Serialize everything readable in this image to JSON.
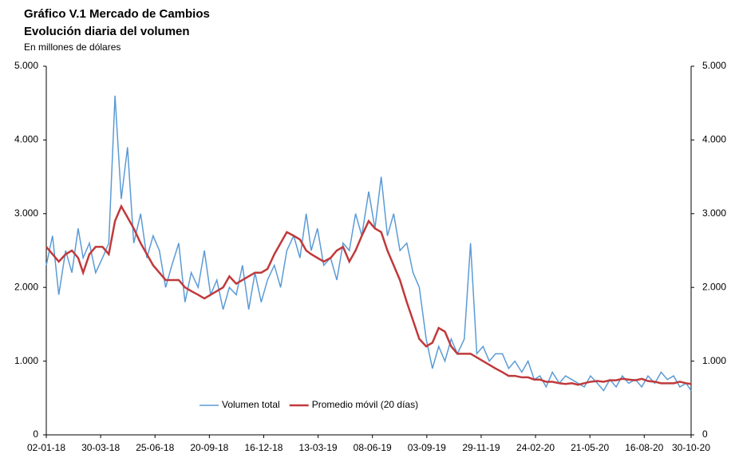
{
  "chart_data": {
    "type": "line",
    "title": "Gráfico V.1 Mercado de Cambios",
    "subtitle": "Evolución diaria del volumen",
    "y_label": "En millones de dólares",
    "x": [
      "02-01-18",
      "12-01-18",
      "22-01-18",
      "02-02-18",
      "12-02-18",
      "22-02-18",
      "02-03-18",
      "12-03-18",
      "22-03-18",
      "02-04-18",
      "12-04-18",
      "22-04-18",
      "02-05-18",
      "12-05-18",
      "22-05-18",
      "02-06-18",
      "12-06-18",
      "22-06-18",
      "02-07-18",
      "12-07-18",
      "22-07-18",
      "02-08-18",
      "12-08-18",
      "22-08-18",
      "02-09-18",
      "12-09-18",
      "22-09-18",
      "02-10-18",
      "12-10-18",
      "22-10-18",
      "02-11-18",
      "12-11-18",
      "22-11-18",
      "02-12-18",
      "12-12-18",
      "22-12-18",
      "02-01-19",
      "12-01-19",
      "22-01-19",
      "02-02-19",
      "12-02-19",
      "22-02-19",
      "02-03-19",
      "12-03-19",
      "22-03-19",
      "02-04-19",
      "12-04-19",
      "22-04-19",
      "02-05-19",
      "12-05-19",
      "22-05-19",
      "02-06-19",
      "12-06-19",
      "22-06-19",
      "02-07-19",
      "12-07-19",
      "22-07-19",
      "02-08-19",
      "12-08-19",
      "22-08-19",
      "02-09-19",
      "12-09-19",
      "22-09-19",
      "02-10-19",
      "12-10-19",
      "22-10-19",
      "02-11-19",
      "12-11-19",
      "22-11-19",
      "02-12-19",
      "12-12-19",
      "22-12-19",
      "02-01-20",
      "12-01-20",
      "22-01-20",
      "02-02-20",
      "12-02-20",
      "22-02-20",
      "02-03-20",
      "12-03-20",
      "22-03-20",
      "02-04-20",
      "12-04-20",
      "22-04-20",
      "02-05-20",
      "12-05-20",
      "22-05-20",
      "02-06-20",
      "12-06-20",
      "22-06-20",
      "02-07-20",
      "12-07-20",
      "22-07-20",
      "02-08-20",
      "12-08-20",
      "22-08-20",
      "02-09-20",
      "12-09-20",
      "22-09-20",
      "02-10-20",
      "12-10-20",
      "22-10-20",
      "30-10-20"
    ],
    "series": [
      {
        "name": "Volumen total",
        "color": "#5b9bd5",
        "values": [
          2300,
          2700,
          1900,
          2500,
          2200,
          2800,
          2400,
          2600,
          2200,
          2400,
          2600,
          4600,
          3200,
          3900,
          2600,
          3000,
          2400,
          2700,
          2500,
          2000,
          2300,
          2600,
          1800,
          2200,
          2000,
          2500,
          1900,
          2100,
          1700,
          2000,
          1900,
          2300,
          1700,
          2200,
          1800,
          2100,
          2300,
          2000,
          2500,
          2700,
          2400,
          3000,
          2500,
          2800,
          2300,
          2400,
          2100,
          2600,
          2500,
          3000,
          2700,
          3300,
          2800,
          3500,
          2700,
          3000,
          2500,
          2600,
          2200,
          2000,
          1300,
          900,
          1200,
          1000,
          1300,
          1100,
          1300,
          2600,
          1100,
          1200,
          1000,
          1100,
          1100,
          900,
          1000,
          850,
          1000,
          750,
          800,
          650,
          850,
          700,
          800,
          750,
          700,
          650,
          800,
          700,
          600,
          750,
          650,
          800,
          700,
          750,
          650,
          800,
          700,
          850,
          750,
          800,
          650,
          700,
          600
        ]
      },
      {
        "name": "Promedio móvil (20 días)",
        "color": "#c0393b",
        "values": [
          2550,
          2450,
          2350,
          2450,
          2500,
          2400,
          2200,
          2450,
          2550,
          2550,
          2450,
          2900,
          3100,
          2950,
          2800,
          2600,
          2450,
          2300,
          2200,
          2100,
          2100,
          2100,
          2000,
          1950,
          1900,
          1850,
          1900,
          1950,
          2000,
          2150,
          2050,
          2100,
          2150,
          2200,
          2200,
          2250,
          2450,
          2600,
          2750,
          2700,
          2650,
          2500,
          2450,
          2400,
          2350,
          2400,
          2500,
          2550,
          2350,
          2500,
          2700,
          2900,
          2800,
          2750,
          2500,
          2300,
          2100,
          1800,
          1550,
          1300,
          1200,
          1250,
          1450,
          1400,
          1200,
          1100,
          1100,
          1100,
          1050,
          1000,
          950,
          900,
          850,
          800,
          800,
          780,
          780,
          750,
          750,
          720,
          720,
          700,
          690,
          700,
          680,
          700,
          720,
          730,
          720,
          740,
          740,
          760,
          750,
          740,
          760,
          730,
          720,
          700,
          700,
          700,
          720,
          700,
          690
        ]
      }
    ],
    "xlim": [
      "02-01-18",
      "30-10-20"
    ],
    "xticks": [
      "02-01-18",
      "30-03-18",
      "25-06-18",
      "20-09-18",
      "16-12-18",
      "13-03-19",
      "08-06-19",
      "03-09-19",
      "29-11-19",
      "24-02-20",
      "21-05-20",
      "16-08-20",
      "30-10-20"
    ],
    "ylim": [
      0,
      5000
    ],
    "yticks": [
      0,
      {
        "value": 1000,
        "label": "1.000"
      },
      {
        "value": 2000,
        "label": "2.000"
      },
      {
        "value": 3000,
        "label": "3.000"
      },
      {
        "value": 4000,
        "label": "4.000"
      },
      {
        "value": 5000,
        "label": "5.000"
      }
    ],
    "y2lim": [
      0,
      5000
    ],
    "y2ticks": [
      0,
      {
        "value": 1000,
        "label": "1.000"
      },
      {
        "value": 2000,
        "label": "2.000"
      },
      {
        "value": 3000,
        "label": "3.000"
      },
      {
        "value": 4000,
        "label": "4.000"
      },
      {
        "value": 5000,
        "label": "5.000"
      }
    ]
  }
}
